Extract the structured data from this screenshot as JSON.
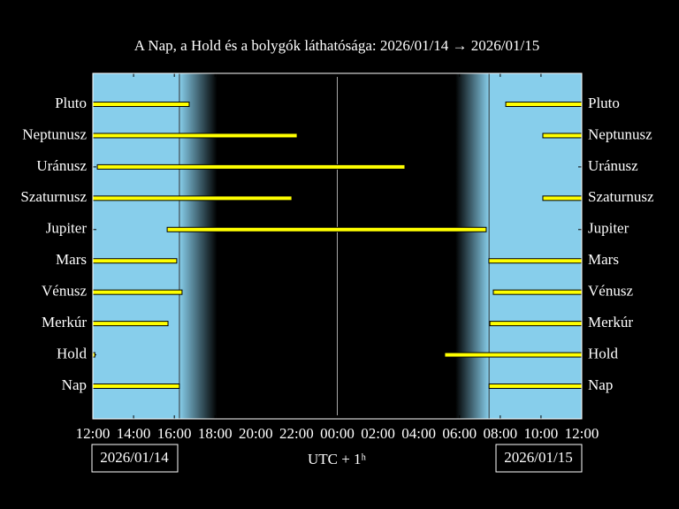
{
  "chart_data": {
    "type": "visibility",
    "title": "A Nap, a Hold és a bolygók láthatósága: 2026/01/14 → 2026/01/15",
    "xlabel": "UTC + 1ʰ",
    "start_date": "2026/01/14",
    "end_date": "2026/01/15",
    "xlim": [
      0,
      24
    ],
    "xticks": [
      {
        "value": 0,
        "label": "12:00"
      },
      {
        "value": 2,
        "label": "14:00"
      },
      {
        "value": 4,
        "label": "16:00"
      },
      {
        "value": 6,
        "label": "18:00"
      },
      {
        "value": 8,
        "label": "20:00"
      },
      {
        "value": 10,
        "label": "22:00"
      },
      {
        "value": 12,
        "label": "00:00"
      },
      {
        "value": 14,
        "label": "02:00"
      },
      {
        "value": 16,
        "label": "04:00"
      },
      {
        "value": 18,
        "label": "06:00"
      },
      {
        "value": 20,
        "label": "08:00"
      },
      {
        "value": 22,
        "label": "10:00"
      },
      {
        "value": 24,
        "label": "12:00"
      }
    ],
    "sunset": 4.25,
    "dark_start": 6.1,
    "dark_end": 17.8,
    "sunrise": 19.45,
    "day_color": "#87ceeb",
    "bar_color": "#ffff00",
    "rows": [
      {
        "name": "Pluto",
        "intervals": [
          [
            0,
            4.73
          ],
          [
            20.27,
            24
          ]
        ]
      },
      {
        "name": "Neptunusz",
        "intervals": [
          [
            0,
            10.03
          ],
          [
            22.09,
            24
          ]
        ]
      },
      {
        "name": "Uránusz",
        "intervals": [
          [
            0.22,
            15.32
          ]
        ]
      },
      {
        "name": "Szaturnusz",
        "intervals": [
          [
            0,
            9.77
          ],
          [
            22.09,
            24
          ]
        ]
      },
      {
        "name": "Jupiter",
        "intervals": [
          [
            3.65,
            19.31
          ]
        ]
      },
      {
        "name": "Mars",
        "intervals": [
          [
            0,
            4.12
          ],
          [
            19.44,
            24
          ]
        ]
      },
      {
        "name": "Vénusz",
        "intervals": [
          [
            0,
            4.38
          ],
          [
            19.66,
            24
          ]
        ]
      },
      {
        "name": "Merkúr",
        "intervals": [
          [
            0,
            3.69
          ],
          [
            19.49,
            24
          ]
        ]
      },
      {
        "name": "Hold",
        "intervals": [
          [
            0,
            0.1
          ],
          [
            17.27,
            24
          ]
        ]
      },
      {
        "name": "Nap",
        "intervals": [
          [
            0,
            4.25
          ],
          [
            19.45,
            24
          ]
        ]
      }
    ]
  }
}
